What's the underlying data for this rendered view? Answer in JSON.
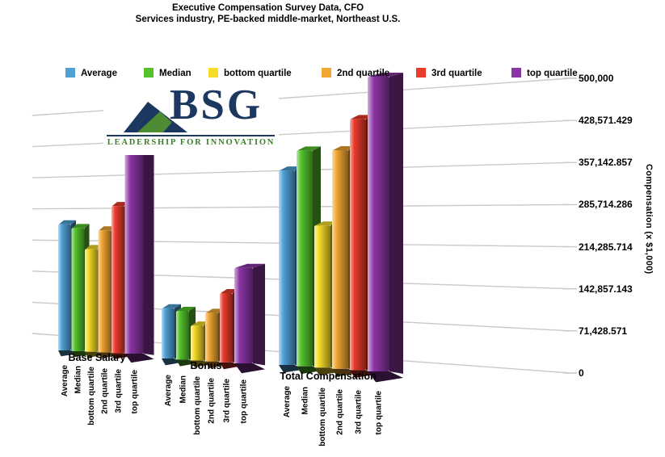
{
  "header": {
    "title": "Executive Compensation Survey Data, CFO",
    "subtitle": "Services industry, PE-backed middle-market, Northeast U.S."
  },
  "logo": {
    "brand": "BSG",
    "tagline": "LEADERSHIP FOR INNOVATION",
    "navy": "#1c3760",
    "green": "#4e8c33"
  },
  "chart_data": {
    "type": "bar",
    "effect": "3d",
    "title": "Executive Compensation Survey Data, CFO",
    "subtitle": "Services industry, PE-backed middle-market, Northeast U.S.",
    "xlabel": "",
    "ylabel": "Compensation (x $1,000)",
    "ylim": [
      0,
      500000
    ],
    "grid": true,
    "legend_position": "top",
    "categories": [
      "Base Salary",
      "Bonus",
      "Total Compensation"
    ],
    "y_ticks": [
      "0",
      "71,428.571",
      "142,857.143",
      "214,285.714",
      "285,714.286",
      "357,142.857",
      "428,571.429",
      "500,000"
    ],
    "series": [
      {
        "name": "Average",
        "color": "#4fa0d6",
        "values": [
          248000,
          92000,
          330000
        ]
      },
      {
        "name": "Median",
        "color": "#55c22c",
        "values": [
          242000,
          89000,
          366000
        ]
      },
      {
        "name": "bottom quartile",
        "color": "#f5dc28",
        "values": [
          202000,
          64000,
          241000
        ]
      },
      {
        "name": "2nd quartile",
        "color": "#f0a632",
        "values": [
          240000,
          89000,
          371000
        ]
      },
      {
        "name": "3rd quartile",
        "color": "#e93a2b",
        "values": [
          289000,
          127000,
          426000
        ]
      },
      {
        "name": "top quartile",
        "color": "#8b34a4",
        "values": [
          392000,
          175000,
          500000
        ]
      }
    ],
    "gridline_color": "#c9c9c9"
  }
}
